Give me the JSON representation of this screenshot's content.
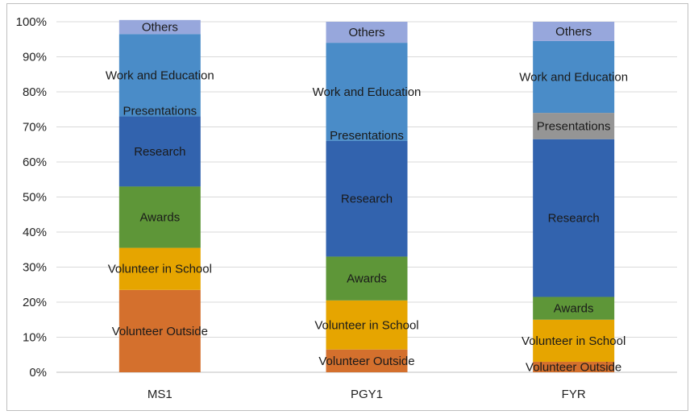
{
  "chart_data": {
    "type": "bar",
    "stacked": true,
    "percent_stacked": true,
    "categories": [
      "MS1",
      "PGY1",
      "FYR"
    ],
    "y_ticks": [
      "0%",
      "10%",
      "20%",
      "30%",
      "40%",
      "50%",
      "60%",
      "70%",
      "80%",
      "90%",
      "100%"
    ],
    "ylim": [
      0,
      100
    ],
    "grid": true,
    "legend": "none (segment labels inside bars)",
    "series": [
      {
        "name": "Volunteer Outside",
        "color": "#D4702D",
        "values": [
          23.5,
          6.5,
          3
        ]
      },
      {
        "name": "Volunteer in School",
        "color": "#E6A500",
        "values": [
          12,
          14,
          12
        ]
      },
      {
        "name": "Awards",
        "color": "#5E9638",
        "values": [
          17.5,
          12.5,
          6.5
        ]
      },
      {
        "name": "Research",
        "color": "#3263AE",
        "values": [
          20,
          33,
          45
        ]
      },
      {
        "name": "Presentations",
        "color": "#3263AE",
        "values": [
          0,
          0,
          7.5
        ]
      },
      {
        "name": "Work and Education",
        "color": "#4A8CC8",
        "values": [
          23.5,
          28,
          20.5
        ]
      },
      {
        "name": "Others",
        "color": "#97A7DC",
        "values": [
          4,
          6,
          5.5
        ]
      }
    ],
    "presentations_colors": [
      "#3263AE",
      "#3263AE",
      "#959595"
    ]
  }
}
